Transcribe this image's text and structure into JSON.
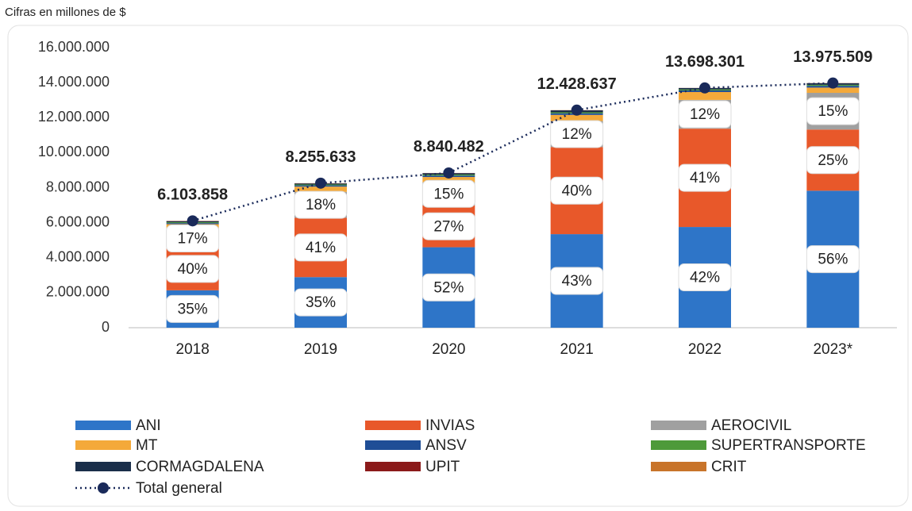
{
  "chart_data": {
    "type": "bar",
    "subtitle": "Cifras en millones de $",
    "categories": [
      "2018",
      "2019",
      "2020",
      "2021",
      "2022",
      "2023*"
    ],
    "ylim": [
      0,
      16000000
    ],
    "yticks": [
      0,
      {
        "value": 2000000,
        "label": "2.000.000"
      },
      {
        "value": 4000000,
        "label": "4.000.000"
      },
      {
        "value": 6000000,
        "label": "6.000.000"
      },
      {
        "value": 8000000,
        "label": "8.000.000"
      },
      {
        "value": 10000000,
        "label": "10.000.000"
      },
      {
        "value": 12000000,
        "label": "12.000.000"
      },
      {
        "value": 14000000,
        "label": "14.000.000"
      },
      {
        "value": 16000000,
        "label": "16.000.000"
      }
    ],
    "stacked": true,
    "series": [
      {
        "name": "ANI",
        "color": "#2e75c8",
        "values": [
          2136000,
          2890000,
          4597000,
          5344000,
          5753000,
          7826000
        ],
        "value_labels": [
          "35%",
          "35%",
          "52%",
          "43%",
          "42%",
          "56%"
        ]
      },
      {
        "name": "INVIAS",
        "color": "#e8582a",
        "values": [
          2442000,
          3385000,
          2387000,
          4971000,
          5616000,
          3494000
        ],
        "value_labels": [
          "40%",
          "41%",
          "27%",
          "40%",
          "41%",
          "25%"
        ]
      },
      {
        "name": "AEROCIVIL",
        "color": "#a0a0a0",
        "values": [
          1038000,
          1486000,
          1326000,
          1491000,
          1644000,
          2096000
        ],
        "value_labels": [
          "17%",
          "18%",
          "15%",
          "12%",
          "12%",
          "15%"
        ]
      },
      {
        "name": "MT",
        "color": "#f4a93a",
        "values": [
          300000,
          300000,
          300000,
          350000,
          450000,
          300000
        ]
      },
      {
        "name": "ANSV",
        "color": "#1f4e96",
        "values": [
          60000,
          70000,
          80000,
          90000,
          90000,
          100000
        ]
      },
      {
        "name": "SUPERTRANSPORTE",
        "color": "#4e9a3a",
        "values": [
          50000,
          50000,
          60000,
          60000,
          60000,
          60000
        ]
      },
      {
        "name": "CORMAGDALENA",
        "color": "#1a2e4a",
        "values": [
          60000,
          60000,
          80000,
          110000,
          80000,
          90000
        ]
      },
      {
        "name": "UPIT",
        "color": "#8b1a1a",
        "values": [
          8000,
          5000,
          5000,
          5000,
          2000,
          5000
        ]
      },
      {
        "name": "CRIT",
        "color": "#c8742a",
        "values": [
          10000,
          10000,
          5000,
          7000,
          3000,
          5000
        ]
      },
      {
        "name": "Total general",
        "type": "line",
        "color": "#1a2a5a",
        "values": [
          6103858,
          8255633,
          8840482,
          12428637,
          13698301,
          13975509
        ],
        "value_labels": [
          "6.103.858",
          "8.255.633",
          "8.840.482",
          "12.428.637",
          "13.698.301",
          "13.975.509"
        ]
      }
    ]
  }
}
